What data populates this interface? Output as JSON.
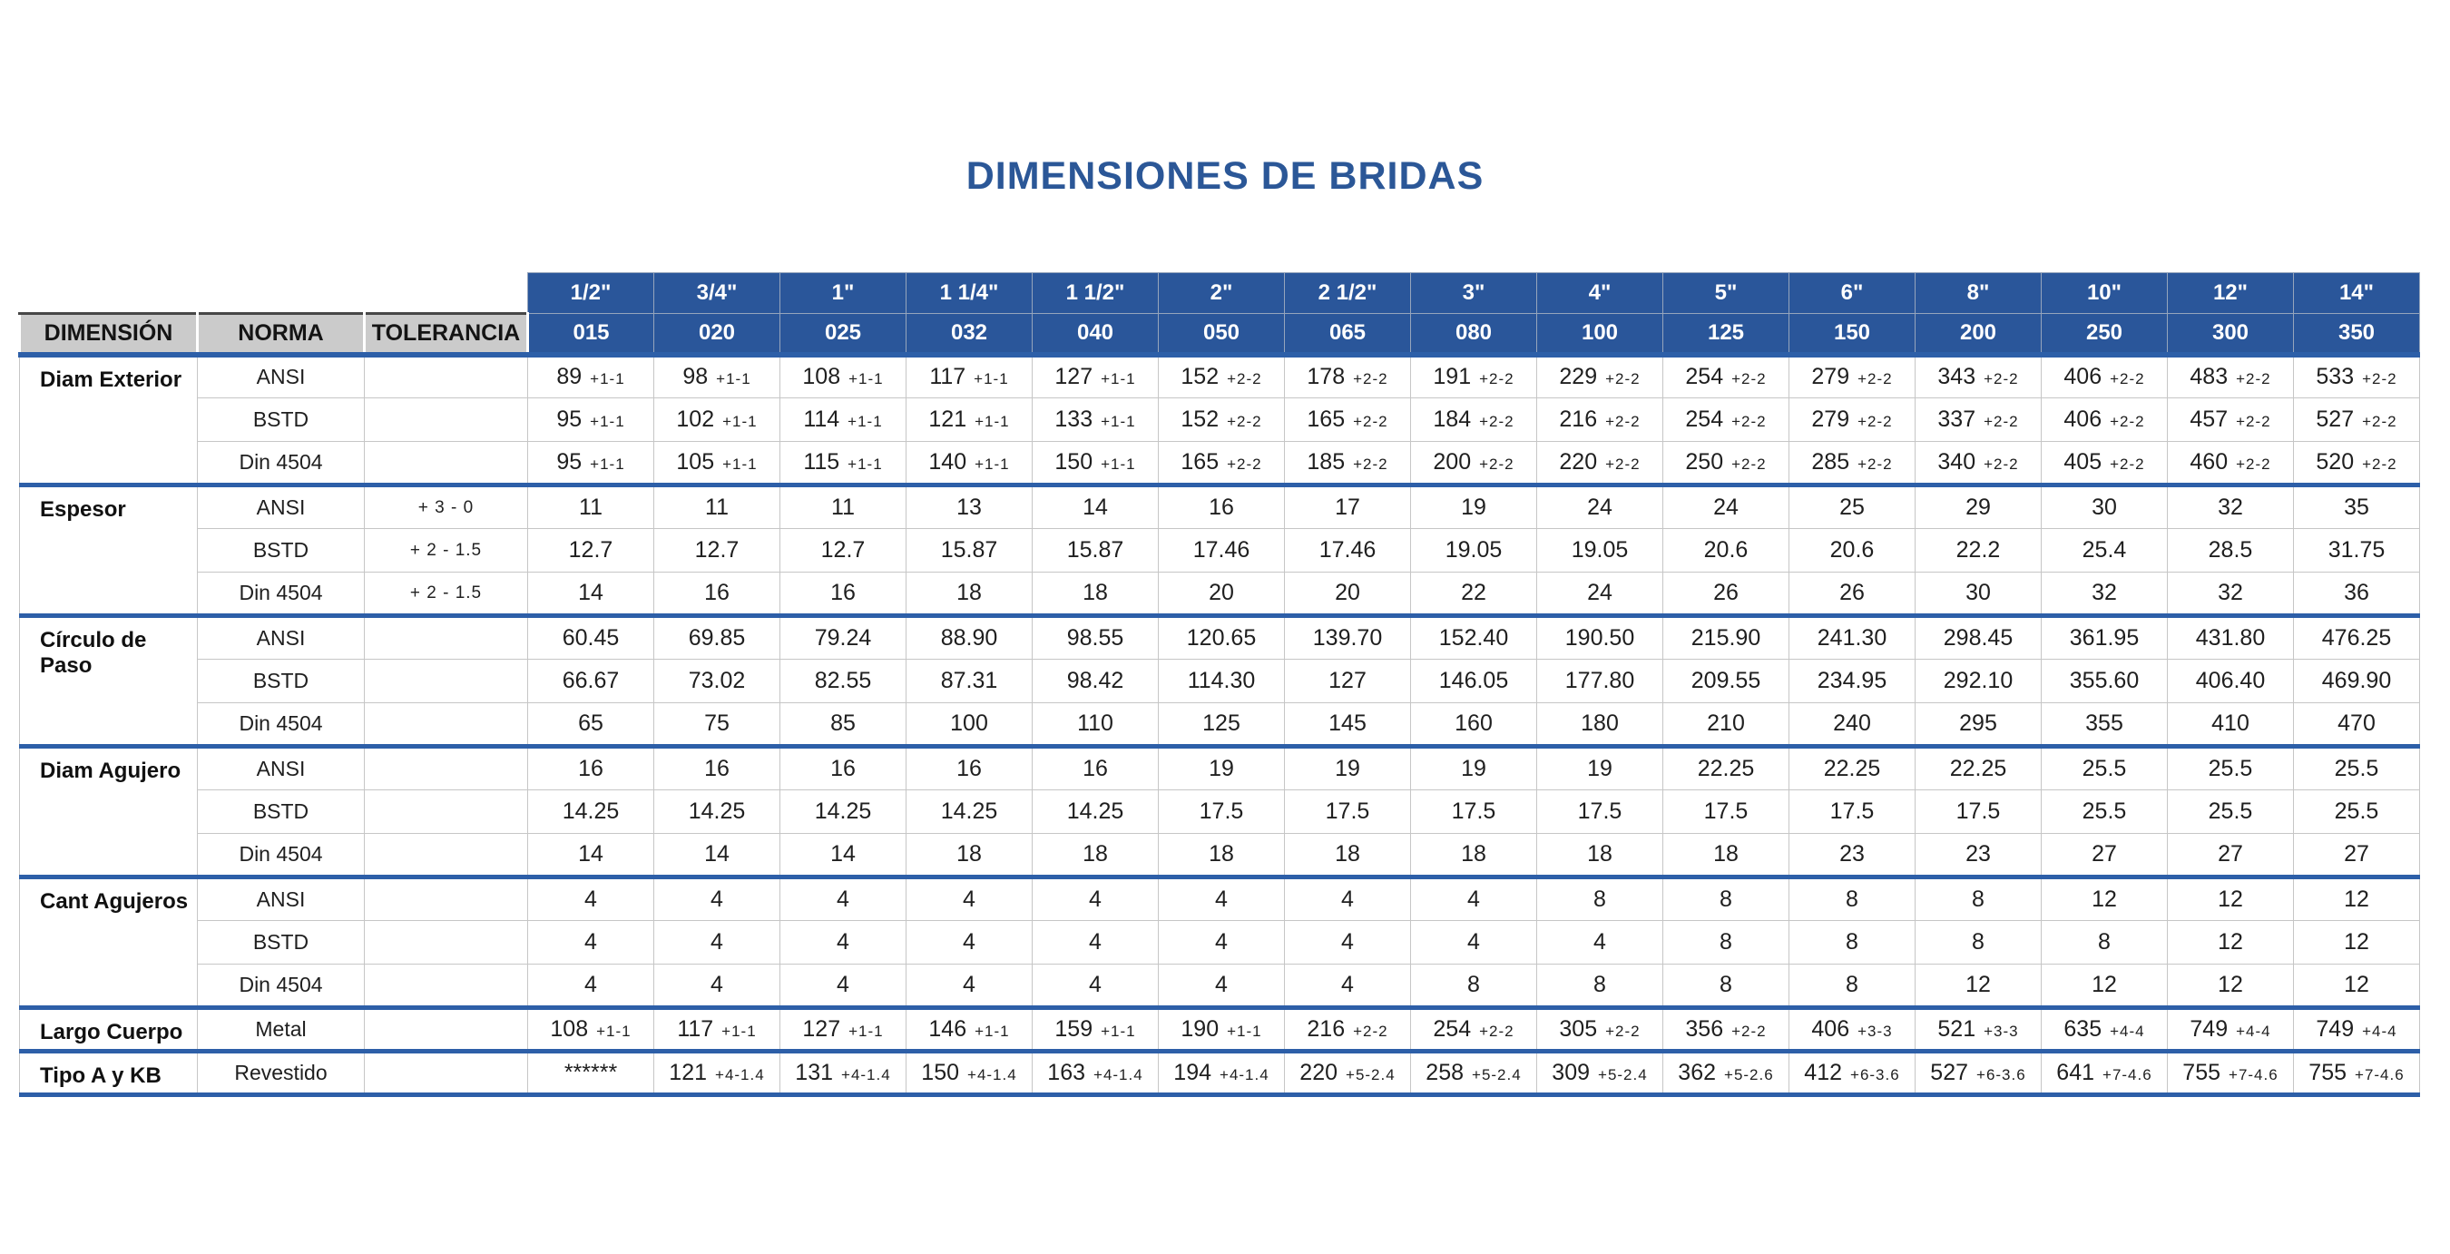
{
  "title": "DIMENSIONES DE BRIDAS",
  "colors": {
    "title_blue": "#2B5797",
    "header_blue": "#2A569A",
    "header_gray": "#CBCBCB",
    "divider_blue": "#2D5FA8",
    "grid_gray": "#C6C6C6"
  },
  "table": {
    "left_headers": [
      "DIMENSIÓN",
      "NORMA",
      "TOLERANCIA"
    ],
    "size_headers_inch": [
      "1/2\"",
      "3/4\"",
      "1\"",
      "1 1/4\"",
      "1 1/2\"",
      "2\"",
      "2 1/2\"",
      "3\"",
      "4\"",
      "5\"",
      "6\"",
      "8\"",
      "10\"",
      "12\"",
      "14\""
    ],
    "size_headers_dn": [
      "015",
      "020",
      "025",
      "032",
      "040",
      "050",
      "065",
      "080",
      "100",
      "125",
      "150",
      "200",
      "250",
      "300",
      "350"
    ],
    "groups": [
      {
        "dimension": "Diam Exterior",
        "rows": [
          {
            "norma": "ANSI",
            "tolerancia": "",
            "values": [
              "89|+1-1",
              "98|+1-1",
              "108|+1-1",
              "117|+1-1",
              "127|+1-1",
              "152|+2-2",
              "178|+2-2",
              "191|+2-2",
              "229|+2-2",
              "254|+2-2",
              "279|+2-2",
              "343|+2-2",
              "406|+2-2",
              "483|+2-2",
              "533|+2-2"
            ]
          },
          {
            "norma": "BSTD",
            "tolerancia": "",
            "values": [
              "95|+1-1",
              "102|+1-1",
              "114|+1-1",
              "121|+1-1",
              "133|+1-1",
              "152|+2-2",
              "165|+2-2",
              "184|+2-2",
              "216|+2-2",
              "254|+2-2",
              "279|+2-2",
              "337|+2-2",
              "406|+2-2",
              "457|+2-2",
              "527|+2-2"
            ]
          },
          {
            "norma": "Din 4504",
            "tolerancia": "",
            "values": [
              "95|+1-1",
              "105|+1-1",
              "115|+1-1",
              "140|+1-1",
              "150|+1-1",
              "165|+2-2",
              "185|+2-2",
              "200|+2-2",
              "220|+2-2",
              "250|+2-2",
              "285|+2-2",
              "340|+2-2",
              "405|+2-2",
              "460|+2-2",
              "520|+2-2"
            ]
          }
        ]
      },
      {
        "dimension": "Espesor",
        "rows": [
          {
            "norma": "ANSI",
            "tolerancia": "+ 3 - 0",
            "values": [
              "11",
              "11",
              "11",
              "13",
              "14",
              "16",
              "17",
              "19",
              "24",
              "24",
              "25",
              "29",
              "30",
              "32",
              "35"
            ]
          },
          {
            "norma": "BSTD",
            "tolerancia": "+ 2 - 1.5",
            "values": [
              "12.7",
              "12.7",
              "12.7",
              "15.87",
              "15.87",
              "17.46",
              "17.46",
              "19.05",
              "19.05",
              "20.6",
              "20.6",
              "22.2",
              "25.4",
              "28.5",
              "31.75"
            ]
          },
          {
            "norma": "Din 4504",
            "tolerancia": "+ 2 - 1.5",
            "values": [
              "14",
              "16",
              "16",
              "18",
              "18",
              "20",
              "20",
              "22",
              "24",
              "26",
              "26",
              "30",
              "32",
              "32",
              "36"
            ]
          }
        ]
      },
      {
        "dimension": "Círculo de Paso",
        "rows": [
          {
            "norma": "ANSI",
            "tolerancia": "",
            "values": [
              "60.45",
              "69.85",
              "79.24",
              "88.90",
              "98.55",
              "120.65",
              "139.70",
              "152.40",
              "190.50",
              "215.90",
              "241.30",
              "298.45",
              "361.95",
              "431.80",
              "476.25"
            ]
          },
          {
            "norma": "BSTD",
            "tolerancia": "",
            "values": [
              "66.67",
              "73.02",
              "82.55",
              "87.31",
              "98.42",
              "114.30",
              "127",
              "146.05",
              "177.80",
              "209.55",
              "234.95",
              "292.10",
              "355.60",
              "406.40",
              "469.90"
            ]
          },
          {
            "norma": "Din 4504",
            "tolerancia": "",
            "values": [
              "65",
              "75",
              "85",
              "100",
              "110",
              "125",
              "145",
              "160",
              "180",
              "210",
              "240",
              "295",
              "355",
              "410",
              "470"
            ]
          }
        ]
      },
      {
        "dimension": "Diam Agujero",
        "rows": [
          {
            "norma": "ANSI",
            "tolerancia": "",
            "values": [
              "16",
              "16",
              "16",
              "16",
              "16",
              "19",
              "19",
              "19",
              "19",
              "22.25",
              "22.25",
              "22.25",
              "25.5",
              "25.5",
              "25.5"
            ]
          },
          {
            "norma": "BSTD",
            "tolerancia": "",
            "values": [
              "14.25",
              "14.25",
              "14.25",
              "14.25",
              "14.25",
              "17.5",
              "17.5",
              "17.5",
              "17.5",
              "17.5",
              "17.5",
              "17.5",
              "25.5",
              "25.5",
              "25.5"
            ]
          },
          {
            "norma": "Din 4504",
            "tolerancia": "",
            "values": [
              "14",
              "14",
              "14",
              "18",
              "18",
              "18",
              "18",
              "18",
              "18",
              "18",
              "23",
              "23",
              "27",
              "27",
              "27"
            ]
          }
        ]
      },
      {
        "dimension": "Cant Agujeros",
        "rows": [
          {
            "norma": "ANSI",
            "tolerancia": "",
            "values": [
              "4",
              "4",
              "4",
              "4",
              "4",
              "4",
              "4",
              "4",
              "8",
              "8",
              "8",
              "8",
              "12",
              "12",
              "12"
            ]
          },
          {
            "norma": "BSTD",
            "tolerancia": "",
            "values": [
              "4",
              "4",
              "4",
              "4",
              "4",
              "4",
              "4",
              "4",
              "4",
              "8",
              "8",
              "8",
              "8",
              "12",
              "12"
            ]
          },
          {
            "norma": "Din 4504",
            "tolerancia": "",
            "values": [
              "4",
              "4",
              "4",
              "4",
              "4",
              "4",
              "4",
              "8",
              "8",
              "8",
              "8",
              "12",
              "12",
              "12",
              "12"
            ]
          }
        ]
      },
      {
        "dimension": "Largo Cuerpo",
        "rows": [
          {
            "norma": "Metal",
            "tolerancia": "",
            "values": [
              "108|+1-1",
              "117|+1-1",
              "127|+1-1",
              "146|+1-1",
              "159|+1-1",
              "190|+1-1",
              "216|+2-2",
              "254|+2-2",
              "305|+2-2",
              "356|+2-2",
              "406|+3-3",
              "521|+3-3",
              "635|+4-4",
              "749|+4-4",
              "749|+4-4"
            ]
          }
        ]
      },
      {
        "dimension": "Tipo A y KB",
        "rows": [
          {
            "norma": "Revestido",
            "tolerancia": "",
            "values": [
              "******",
              "121|+4-1.4",
              "131|+4-1.4",
              "150|+4-1.4",
              "163|+4-1.4",
              "194|+4-1.4",
              "220|+5-2.4",
              "258|+5-2.4",
              "309|+5-2.4",
              "362|+5-2.6",
              "412|+6-3.6",
              "527|+6-3.6",
              "641|+7-4.6",
              "755|+7-4.6",
              "755|+7-4.6"
            ]
          }
        ]
      }
    ]
  }
}
